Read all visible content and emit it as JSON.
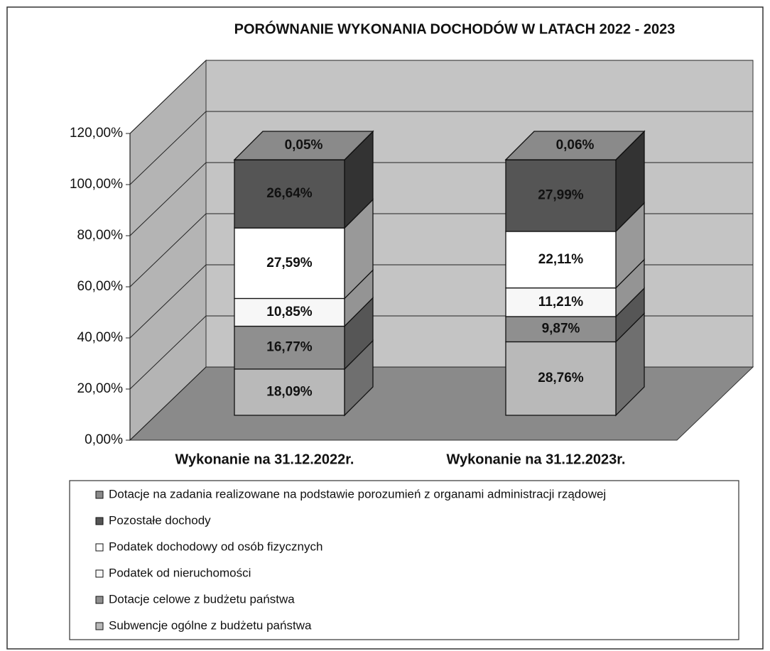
{
  "chart_data": {
    "type": "bar3d_stacked",
    "title": "PORÓWNANIE WYKONANIA DOCHODÓW W LATACH 2022 - 2023",
    "categories": [
      "Wykonanie na 31.12.2022r.",
      "Wykonanie na 31.12.2023r."
    ],
    "series": [
      {
        "name": "Subwencje ogólne z budżetu państwa",
        "color": "#b9b9b9",
        "values": [
          18.09,
          28.76
        ],
        "value_labels": [
          "18,09%",
          "28,76%"
        ]
      },
      {
        "name": "Dotacje celowe z budżetu państwa",
        "color": "#8f8f8f",
        "values": [
          16.77,
          9.87
        ],
        "value_labels": [
          "16,77%",
          "9,87%"
        ]
      },
      {
        "name": "Podatek od nieruchomości",
        "color": "#f7f7f7",
        "values": [
          10.85,
          11.21
        ],
        "value_labels": [
          "10,85%",
          "11,21%"
        ]
      },
      {
        "name": "Podatek dochodowy od osób fizycznych",
        "color": "#ffffff",
        "values": [
          27.59,
          22.11
        ],
        "value_labels": [
          "27,59%",
          "22,11%"
        ]
      },
      {
        "name": "Pozostałe dochody",
        "color": "#555555",
        "values": [
          26.64,
          27.99
        ],
        "value_labels": [
          "26,64%",
          "27,99%"
        ]
      },
      {
        "name": "Dotacje na zadania realizowane na podstawie porozumień z organami administracji rządowej",
        "color": "#8a8a8a",
        "values": [
          0.05,
          0.06
        ],
        "value_labels": [
          "0,05%",
          "0,06%"
        ]
      }
    ],
    "ylim": [
      0,
      120
    ],
    "yticks": [
      {
        "value": 0,
        "label": "0,00%"
      },
      {
        "value": 20,
        "label": "20,00%"
      },
      {
        "value": 40,
        "label": "40,00%"
      },
      {
        "value": 60,
        "label": "60,00%"
      },
      {
        "value": 80,
        "label": "80,00%"
      },
      {
        "value": 100,
        "label": "100,00%"
      },
      {
        "value": 120,
        "label": "120,00%"
      }
    ],
    "grid": true
  }
}
